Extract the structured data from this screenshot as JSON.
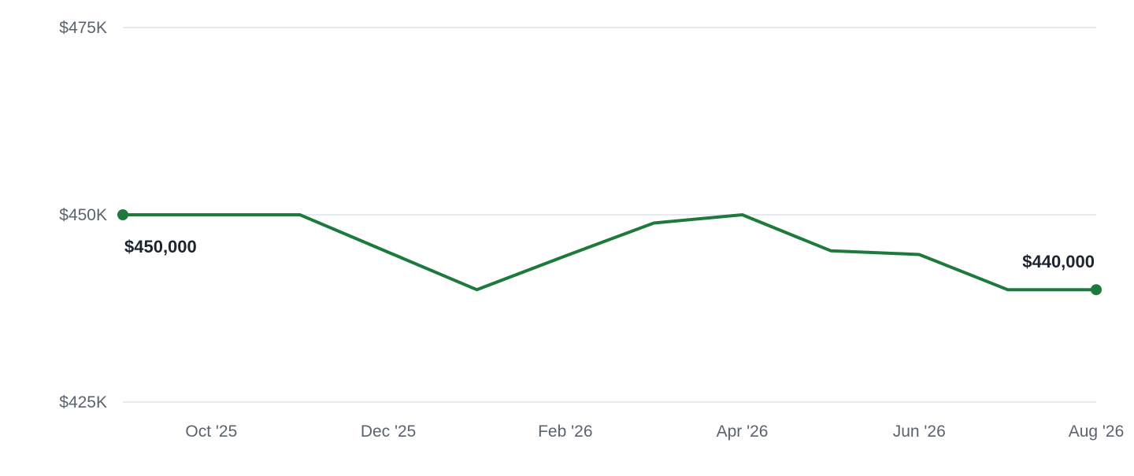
{
  "colors": {
    "series": "#1e7a3c",
    "grid": "#dfe3e8",
    "tick_text": "#5a6470",
    "label_text": "#1c2430"
  },
  "chart_data": {
    "type": "line",
    "title": "",
    "xlabel": "",
    "ylabel": "",
    "grid": true,
    "legend": "none",
    "ylim": [
      425000,
      475000
    ],
    "xlim": [
      "2025-09",
      "2026-08"
    ],
    "yticks": [
      {
        "value": 475000,
        "label": "$475K"
      },
      {
        "value": 450000,
        "label": "$450K"
      },
      {
        "value": 425000,
        "label": "$425K"
      }
    ],
    "xticks": [
      {
        "value": "2025-10",
        "label": "Oct '25"
      },
      {
        "value": "2025-12",
        "label": "Dec '25"
      },
      {
        "value": "2026-02",
        "label": "Feb '26"
      },
      {
        "value": "2026-04",
        "label": "Apr '26"
      },
      {
        "value": "2026-06",
        "label": "Jun '26"
      },
      {
        "value": "2026-08",
        "label": "Aug '26"
      }
    ],
    "x": [
      "2025-09",
      "2025-10",
      "2025-11",
      "2025-12",
      "2026-01",
      "2026-02",
      "2026-03",
      "2026-04",
      "2026-05",
      "2026-06",
      "2026-07",
      "2026-08"
    ],
    "series": [
      {
        "values": [
          450000,
          450000,
          450000,
          445000,
          440000,
          444500,
          448900,
          450000,
          445200,
          444700,
          440000,
          440000
        ]
      }
    ],
    "annotations": [
      {
        "index": 0,
        "text": "$450,000"
      },
      {
        "index": 11,
        "text": "$440,000"
      }
    ]
  }
}
